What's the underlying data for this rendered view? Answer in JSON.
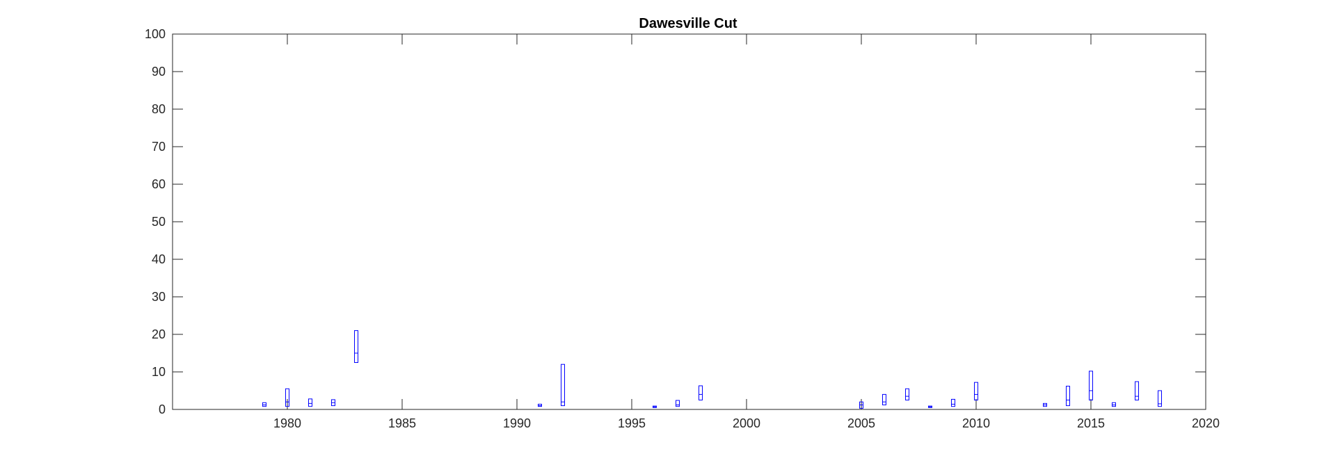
{
  "chart_data": {
    "type": "box",
    "title": "Dawesville Cut",
    "xlabel": "",
    "ylabel": "",
    "xlim": [
      1975,
      2020
    ],
    "ylim": [
      0,
      100
    ],
    "xticks": [
      1980,
      1985,
      1990,
      1995,
      2000,
      2005,
      2010,
      2015,
      2020
    ],
    "yticks": [
      0,
      10,
      20,
      30,
      40,
      50,
      60,
      70,
      80,
      90,
      100
    ],
    "grid": false,
    "box_color": "#0000ff",
    "axis_color": "#262626",
    "boxes": [
      {
        "x": 1979,
        "low": 0.8,
        "high": 1.8,
        "median": 1.2
      },
      {
        "x": 1980,
        "low": 0.8,
        "high": 5.5,
        "median": 2.0
      },
      {
        "x": 1981,
        "low": 0.8,
        "high": 2.8,
        "median": 1.6
      },
      {
        "x": 1982,
        "low": 1.0,
        "high": 2.6,
        "median": 1.8
      },
      {
        "x": 1983,
        "low": 12.5,
        "high": 21.0,
        "median": 15.0
      },
      {
        "x": 1991,
        "low": 0.8,
        "high": 1.4,
        "median": 1.0
      },
      {
        "x": 1992,
        "low": 1.0,
        "high": 12.0,
        "median": 2.0
      },
      {
        "x": 1996,
        "low": 0.5,
        "high": 0.9,
        "median": 0.7
      },
      {
        "x": 1997,
        "low": 0.8,
        "high": 2.4,
        "median": 1.2
      },
      {
        "x": 1998,
        "low": 2.5,
        "high": 6.3,
        "median": 4.0
      },
      {
        "x": 2005,
        "low": 0.3,
        "high": 2.0,
        "median": 1.2
      },
      {
        "x": 2006,
        "low": 1.2,
        "high": 4.0,
        "median": 2.0
      },
      {
        "x": 2007,
        "low": 2.5,
        "high": 5.5,
        "median": 3.5
      },
      {
        "x": 2008,
        "low": 0.5,
        "high": 0.9,
        "median": 0.7
      },
      {
        "x": 2009,
        "low": 0.8,
        "high": 2.7,
        "median": 1.4
      },
      {
        "x": 2010,
        "low": 2.5,
        "high": 7.2,
        "median": 4.0
      },
      {
        "x": 2013,
        "low": 0.8,
        "high": 1.6,
        "median": 1.2
      },
      {
        "x": 2014,
        "low": 1.0,
        "high": 6.2,
        "median": 2.5
      },
      {
        "x": 2015,
        "low": 2.5,
        "high": 10.2,
        "median": 5.0
      },
      {
        "x": 2016,
        "low": 0.8,
        "high": 1.8,
        "median": 1.2
      },
      {
        "x": 2017,
        "low": 2.5,
        "high": 7.4,
        "median": 3.5
      },
      {
        "x": 2018,
        "low": 0.8,
        "high": 5.0,
        "median": 1.5
      }
    ]
  }
}
